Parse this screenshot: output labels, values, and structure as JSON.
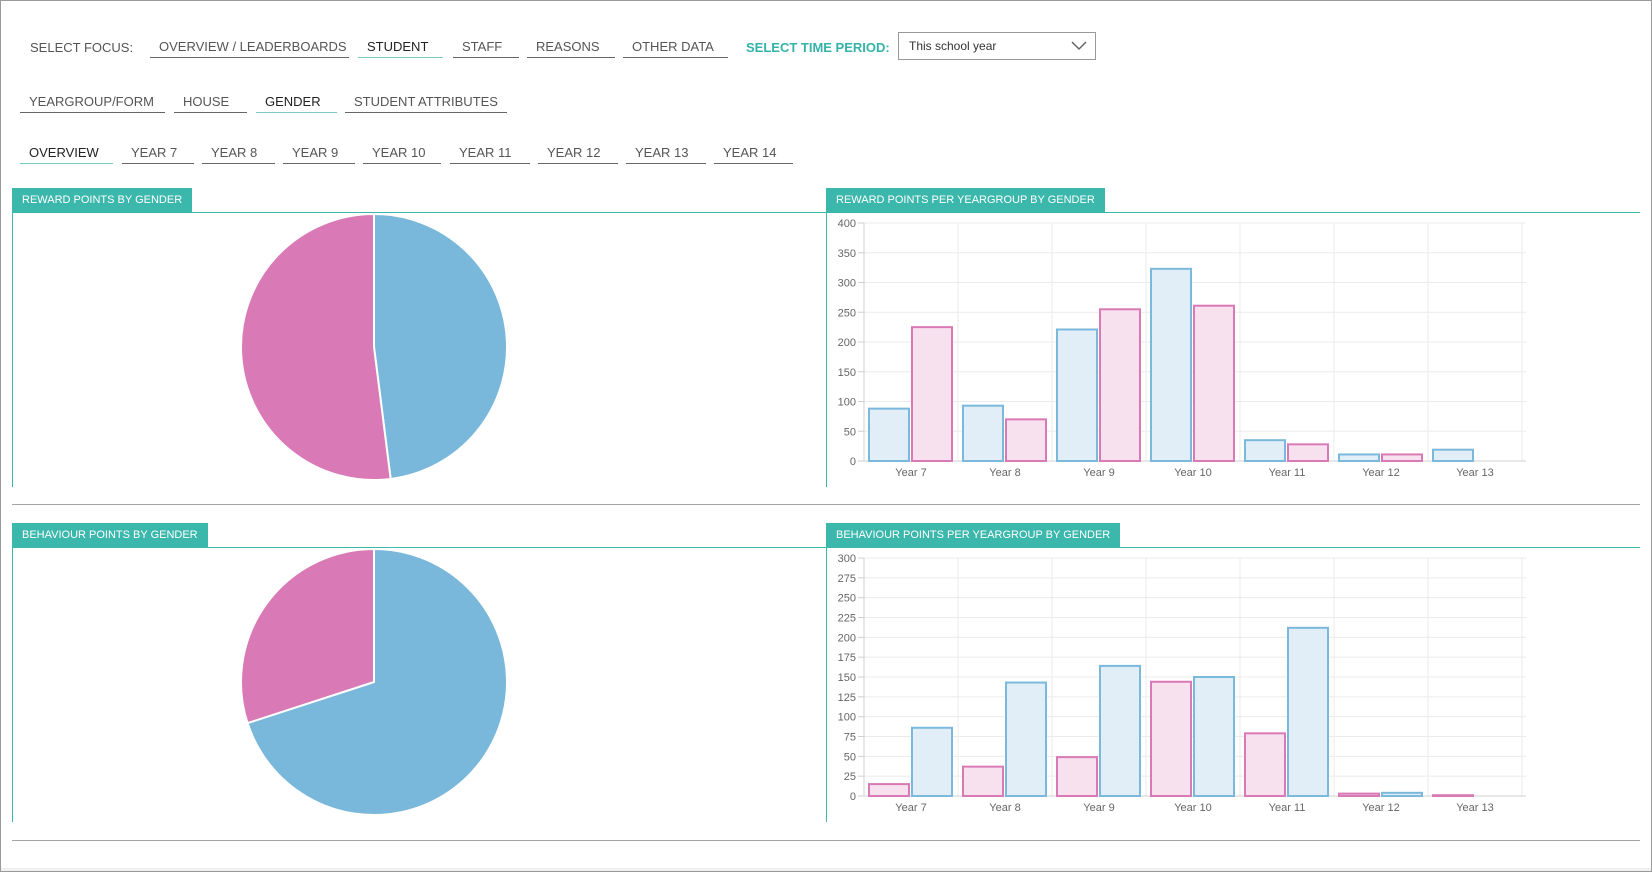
{
  "focus": {
    "label": "SELECT FOCUS:",
    "tabs": [
      "OVERVIEW / LEADERBOARDS",
      "STUDENT",
      "STAFF",
      "REASONS",
      "OTHER DATA"
    ],
    "active": 1
  },
  "time_period": {
    "label": "SELECT TIME PERIOD:",
    "value": "This school year"
  },
  "sub_tabs": {
    "items": [
      "YEARGROUP/FORM",
      "HOUSE",
      "GENDER",
      "STUDENT ATTRIBUTES"
    ],
    "active": 2
  },
  "year_tabs": {
    "items": [
      "OVERVIEW",
      "YEAR 7",
      "YEAR 8",
      "YEAR 9",
      "YEAR 10",
      "YEAR 11",
      "YEAR 12",
      "YEAR 13",
      "YEAR 14"
    ],
    "active": 0
  },
  "panels": {
    "reward_pie_title": "REWARD POINTS BY GENDER",
    "reward_bar_title": "REWARD POINTS PER YEARGROUP BY GENDER",
    "behaviour_pie_title": "BEHAVIOUR POINTS BY GENDER",
    "behaviour_bar_title": "BEHAVIOUR POINTS PER YEARGROUP BY GENDER"
  },
  "colors": {
    "accent": "#3bb7ac",
    "blue_fill": "#79b8da",
    "pink_fill": "#d97ab7",
    "blue_bar_fill": "#e1eef7",
    "blue_bar_stroke": "#7ab9dc",
    "pink_bar_fill": "#f8e1ef",
    "pink_bar_stroke": "#d979b6"
  },
  "chart_data": [
    {
      "type": "pie",
      "values": [
        48,
        52
      ],
      "colors": [
        "#79b8da",
        "#d97ab7"
      ]
    },
    {
      "type": "bar",
      "categories": [
        "Year 7",
        "Year 8",
        "Year 9",
        "Year 10",
        "Year 11",
        "Year 12",
        "Year 13"
      ],
      "series": [
        {
          "values": [
            88,
            93,
            221,
            323,
            35,
            11,
            19
          ],
          "color": "#7ab9dc"
        },
        {
          "values": [
            225,
            70,
            255,
            261,
            28,
            11,
            0
          ],
          "color": "#d979b6"
        }
      ],
      "ylim": [
        0,
        400
      ],
      "yticks": [
        0,
        50,
        100,
        150,
        200,
        250,
        300,
        350,
        400
      ],
      "grid": true
    },
    {
      "type": "pie",
      "values": [
        70,
        30
      ],
      "colors": [
        "#79b8da",
        "#d97ab7"
      ]
    },
    {
      "type": "bar",
      "categories": [
        "Year 7",
        "Year 8",
        "Year 9",
        "Year 10",
        "Year 11",
        "Year 12",
        "Year 13"
      ],
      "series": [
        {
          "values": [
            15,
            37,
            49,
            144,
            79,
            3,
            1
          ],
          "color": "#d979b6"
        },
        {
          "values": [
            86,
            143,
            164,
            150,
            212,
            4,
            0
          ],
          "color": "#7ab9dc"
        }
      ],
      "ylim": [
        0,
        300
      ],
      "yticks": [
        0,
        25,
        50,
        75,
        100,
        125,
        150,
        175,
        200,
        225,
        250,
        275,
        300
      ],
      "grid": true
    }
  ]
}
